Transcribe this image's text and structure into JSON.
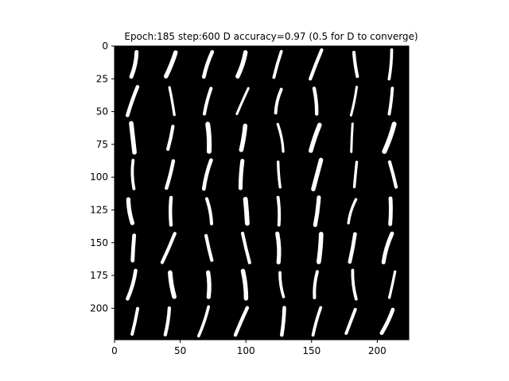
{
  "figure": {
    "title": "Epoch:185 step:600 D accuracy=0.97 (0.5 for D to converge)"
  },
  "image": {
    "background_color": "#000000",
    "stroke_color": "#ffffff",
    "grid_rows": 8,
    "grid_cols": 8,
    "digit": "1"
  },
  "axes": {
    "x_range": [
      0,
      224
    ],
    "y_range": [
      0,
      224
    ],
    "x_ticks": [
      {
        "value": 0,
        "label": "0"
      },
      {
        "value": 50,
        "label": "50"
      },
      {
        "value": 100,
        "label": "100"
      },
      {
        "value": 150,
        "label": "150"
      },
      {
        "value": 200,
        "label": "200"
      }
    ],
    "y_ticks": [
      {
        "value": 0,
        "label": "0"
      },
      {
        "value": 25,
        "label": "25"
      },
      {
        "value": 50,
        "label": "50"
      },
      {
        "value": 75,
        "label": "75"
      },
      {
        "value": 100,
        "label": "100"
      },
      {
        "value": 125,
        "label": "125"
      },
      {
        "value": 150,
        "label": "150"
      },
      {
        "value": 175,
        "label": "175"
      },
      {
        "value": 200,
        "label": "200"
      }
    ]
  }
}
